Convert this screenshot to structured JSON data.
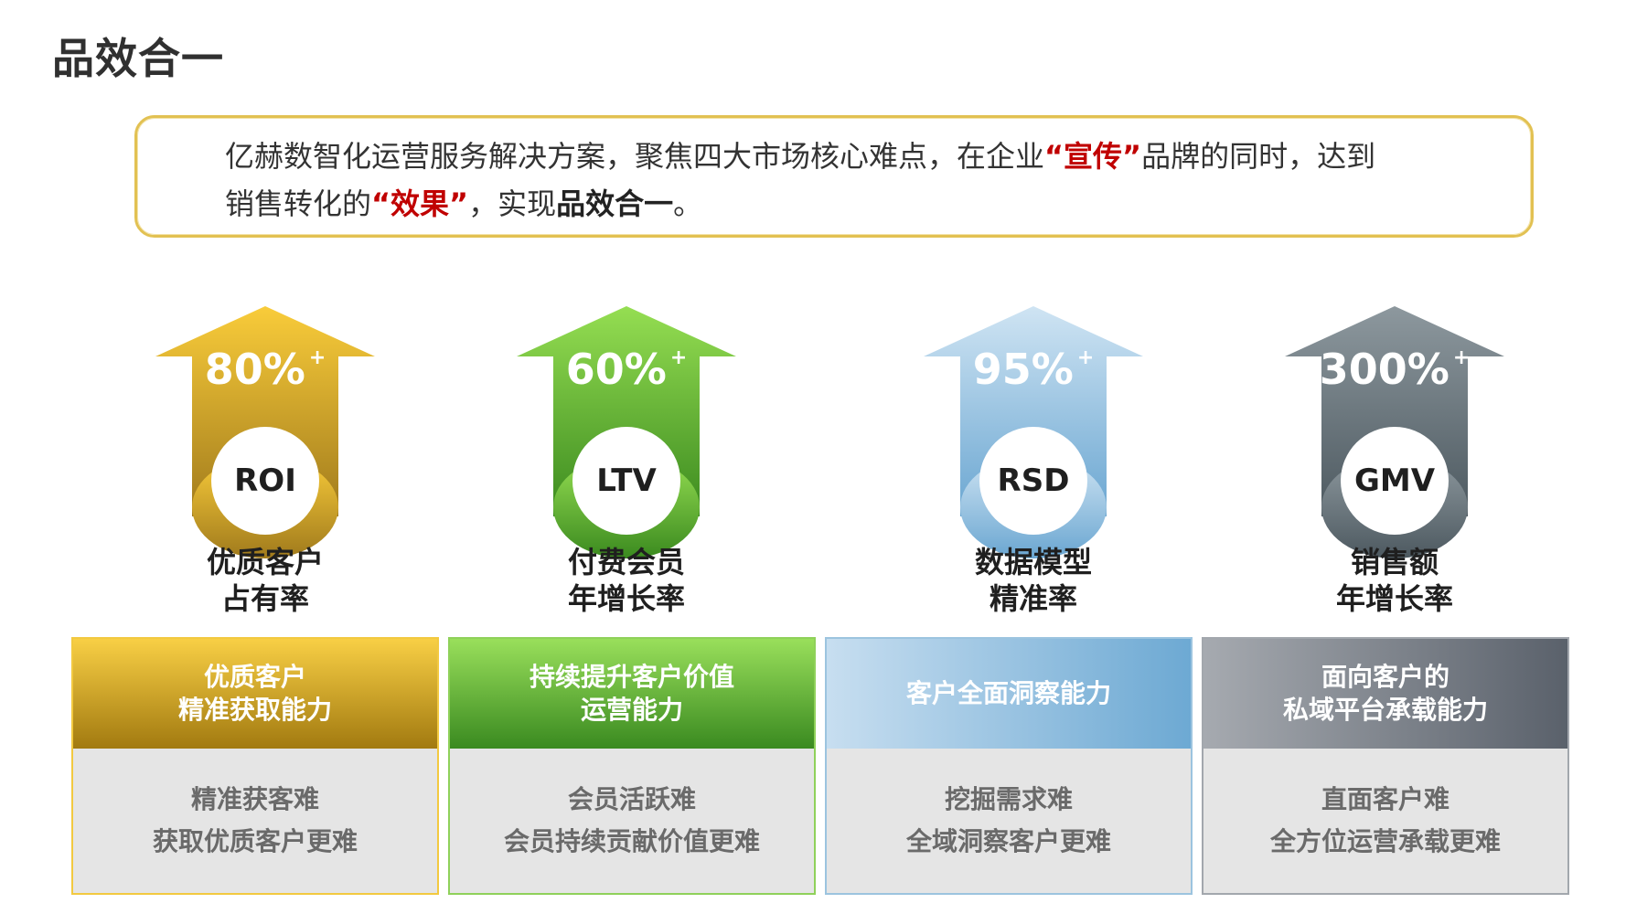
{
  "title": "品效合一",
  "intro": {
    "line1_a": "亿赫数智化运营服务解决方案，聚焦四大市场核心难点，在企业",
    "line1_red": "“宣传”",
    "line1_b": "品牌的同时，达到",
    "line2_a": "销售转化的",
    "line2_red": "“效果”",
    "line2_b": "，实现",
    "line2_bold": "品效合一",
    "line2_c": "。"
  },
  "metrics": [
    {
      "percent": "80%",
      "plus": "+",
      "acronym": "ROI",
      "label_1": "优质客户",
      "label_2": "占有率",
      "color_top": "#f9cc3a",
      "color_bottom": "#a07a1c"
    },
    {
      "percent": "60%",
      "plus": "+",
      "acronym": "LTV",
      "label_1": "付费会员",
      "label_2": "年增长率",
      "color_top": "#95de52",
      "color_bottom": "#3b8a1f"
    },
    {
      "percent": "95%",
      "plus": "+",
      "acronym": "RSD",
      "label_1": "数据模型",
      "label_2": "精准率",
      "color_top": "#cfe4f3",
      "color_bottom": "#6aa6d1"
    },
    {
      "percent": "300%",
      "plus": "+",
      "acronym": "GMV",
      "label_1": "销售额",
      "label_2": "年增长率",
      "color_top": "#8d989e",
      "color_bottom": "#4d5960"
    }
  ],
  "cards": [
    {
      "head_1": "优质客户",
      "head_2": "精准获取能力",
      "body_1": "精准获客难",
      "body_2": "获取优质客户更难"
    },
    {
      "head_1": "持续提升客户价值",
      "head_2": "运营能力",
      "body_1": "会员活跃难",
      "body_2": "会员持续贡献价值更难"
    },
    {
      "head_1": "客户全面洞察能力",
      "head_2": "",
      "body_1": "挖掘需求难",
      "body_2": "全域洞察客户更难"
    },
    {
      "head_1": "面向客户的",
      "head_2": "私域平台承载能力",
      "body_1": "直面客户难",
      "body_2": "全方位运营承载更难"
    }
  ]
}
